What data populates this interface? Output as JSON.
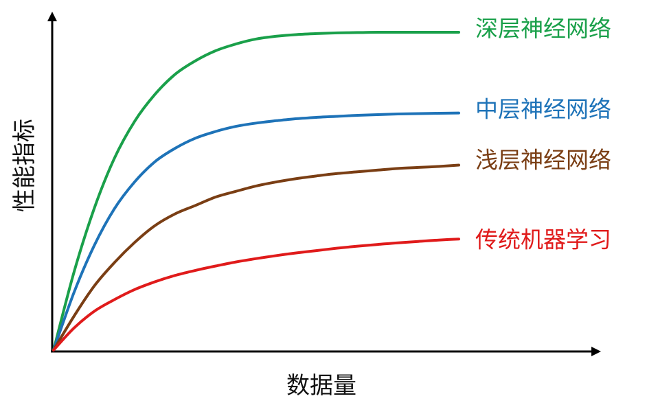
{
  "chart_data": {
    "type": "line",
    "title": "",
    "xlabel": "数据量",
    "ylabel": "性能指标",
    "grid": false,
    "legend": "inline-right",
    "xlim": [
      0,
      100
    ],
    "ylim": [
      0,
      100
    ],
    "series": [
      {
        "name": "深层神经网络",
        "color": "#1aa04a",
        "x": [
          0,
          5,
          10,
          15,
          20,
          25,
          30,
          35,
          40,
          45,
          50,
          55,
          60,
          65,
          70,
          75,
          80,
          85,
          90,
          95,
          100
        ],
        "y": [
          0,
          23,
          42,
          57,
          68,
          76,
          82,
          86,
          89,
          91,
          92.5,
          93.3,
          93.8,
          94.1,
          94.3,
          94.4,
          94.5,
          94.5,
          94.5,
          94.5,
          94.5
        ]
      },
      {
        "name": "中层神经网络",
        "color": "#1e73b8",
        "x": [
          0,
          5,
          10,
          15,
          20,
          25,
          30,
          35,
          40,
          45,
          50,
          55,
          60,
          65,
          70,
          75,
          80,
          85,
          90,
          95,
          100
        ],
        "y": [
          0,
          17,
          31,
          42,
          50,
          56,
          60,
          63,
          65,
          66.5,
          67.5,
          68.2,
          68.8,
          69.2,
          69.5,
          69.8,
          70,
          70.2,
          70.3,
          70.4,
          70.5
        ]
      },
      {
        "name": "浅层神经网络",
        "color": "#7a3e14",
        "x": [
          0,
          5,
          10,
          15,
          20,
          25,
          30,
          35,
          40,
          45,
          50,
          55,
          60,
          65,
          70,
          75,
          80,
          85,
          90,
          95,
          100
        ],
        "y": [
          0,
          10,
          19,
          26,
          32,
          37,
          40.5,
          43,
          45.5,
          47.2,
          48.8,
          50,
          51,
          51.8,
          52.5,
          53,
          53.5,
          54,
          54.3,
          54.6,
          55
        ]
      },
      {
        "name": "传统机器学习",
        "color": "#e01b1b",
        "x": [
          0,
          5,
          10,
          15,
          20,
          25,
          30,
          35,
          40,
          45,
          50,
          55,
          60,
          65,
          70,
          75,
          80,
          85,
          90,
          95,
          100
        ],
        "y": [
          0,
          6.5,
          11.5,
          15,
          18,
          20.3,
          22.2,
          23.7,
          25,
          26.2,
          27.2,
          28.1,
          28.9,
          29.6,
          30.3,
          30.9,
          31.4,
          31.9,
          32.3,
          32.7,
          33
        ]
      }
    ]
  }
}
